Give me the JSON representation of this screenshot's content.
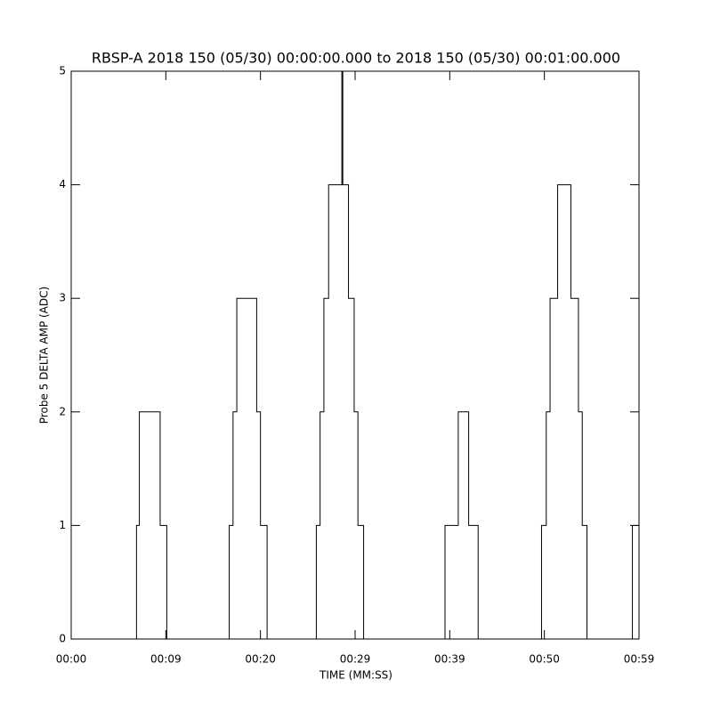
{
  "chart_data": {
    "type": "line",
    "title": "RBSP-A 2018 150 (05/30) 00:00:00.000 to 2018 150 (05/30) 00:01:00.000",
    "x_label": "TIME (MM:SS)",
    "y_label": "Probe 5 DELTA AMP (ADC)",
    "xlim": [
      0,
      60
    ],
    "xticks": [
      {
        "value": 0,
        "label": "00:00"
      },
      {
        "value": 10,
        "label": "00:09"
      },
      {
        "value": 20,
        "label": "00:20"
      },
      {
        "value": 30,
        "label": "00:29"
      },
      {
        "value": 40,
        "label": "00:39"
      },
      {
        "value": 50,
        "label": "00:50"
      },
      {
        "value": 60,
        "label": "00:59"
      }
    ],
    "ylim": [
      0,
      5
    ],
    "yticks": [
      0,
      1,
      2,
      3,
      4,
      5
    ],
    "color": "#000000",
    "series": [
      {
        "x": [
          0,
          6.9,
          6.9,
          7.2,
          7.2,
          9.4,
          9.4,
          10.1,
          10.1,
          16.7,
          16.7,
          17.1,
          17.1,
          17.5,
          17.5,
          19.6,
          19.6,
          20.0,
          20.0,
          20.7,
          20.7,
          25.9,
          25.9,
          26.3,
          26.3,
          26.7,
          26.7,
          27.2,
          27.2,
          28.6,
          28.6,
          28.7,
          28.7,
          29.3,
          29.3,
          29.9,
          29.9,
          30.3,
          30.3,
          30.9,
          30.9,
          39.5,
          39.5,
          40.9,
          40.9,
          42.0,
          42.0,
          43.0,
          43.0,
          49.7,
          49.7,
          50.2,
          50.2,
          50.6,
          50.6,
          51.4,
          51.4,
          52.8,
          52.8,
          53.6,
          53.6,
          54.0,
          54.0,
          54.5,
          54.5,
          59.3,
          59.3,
          60
        ],
        "values": [
          0,
          0,
          1,
          1,
          2,
          2,
          1,
          1,
          0,
          0,
          1,
          1,
          2,
          2,
          3,
          3,
          2,
          2,
          1,
          1,
          0,
          0,
          1,
          1,
          2,
          2,
          3,
          3,
          4,
          4,
          5,
          5,
          4,
          4,
          3,
          3,
          2,
          2,
          1,
          1,
          0,
          0,
          1,
          1,
          2,
          2,
          1,
          1,
          0,
          0,
          1,
          1,
          2,
          2,
          3,
          3,
          4,
          4,
          3,
          3,
          2,
          2,
          1,
          1,
          0,
          0,
          1,
          1
        ]
      }
    ]
  }
}
